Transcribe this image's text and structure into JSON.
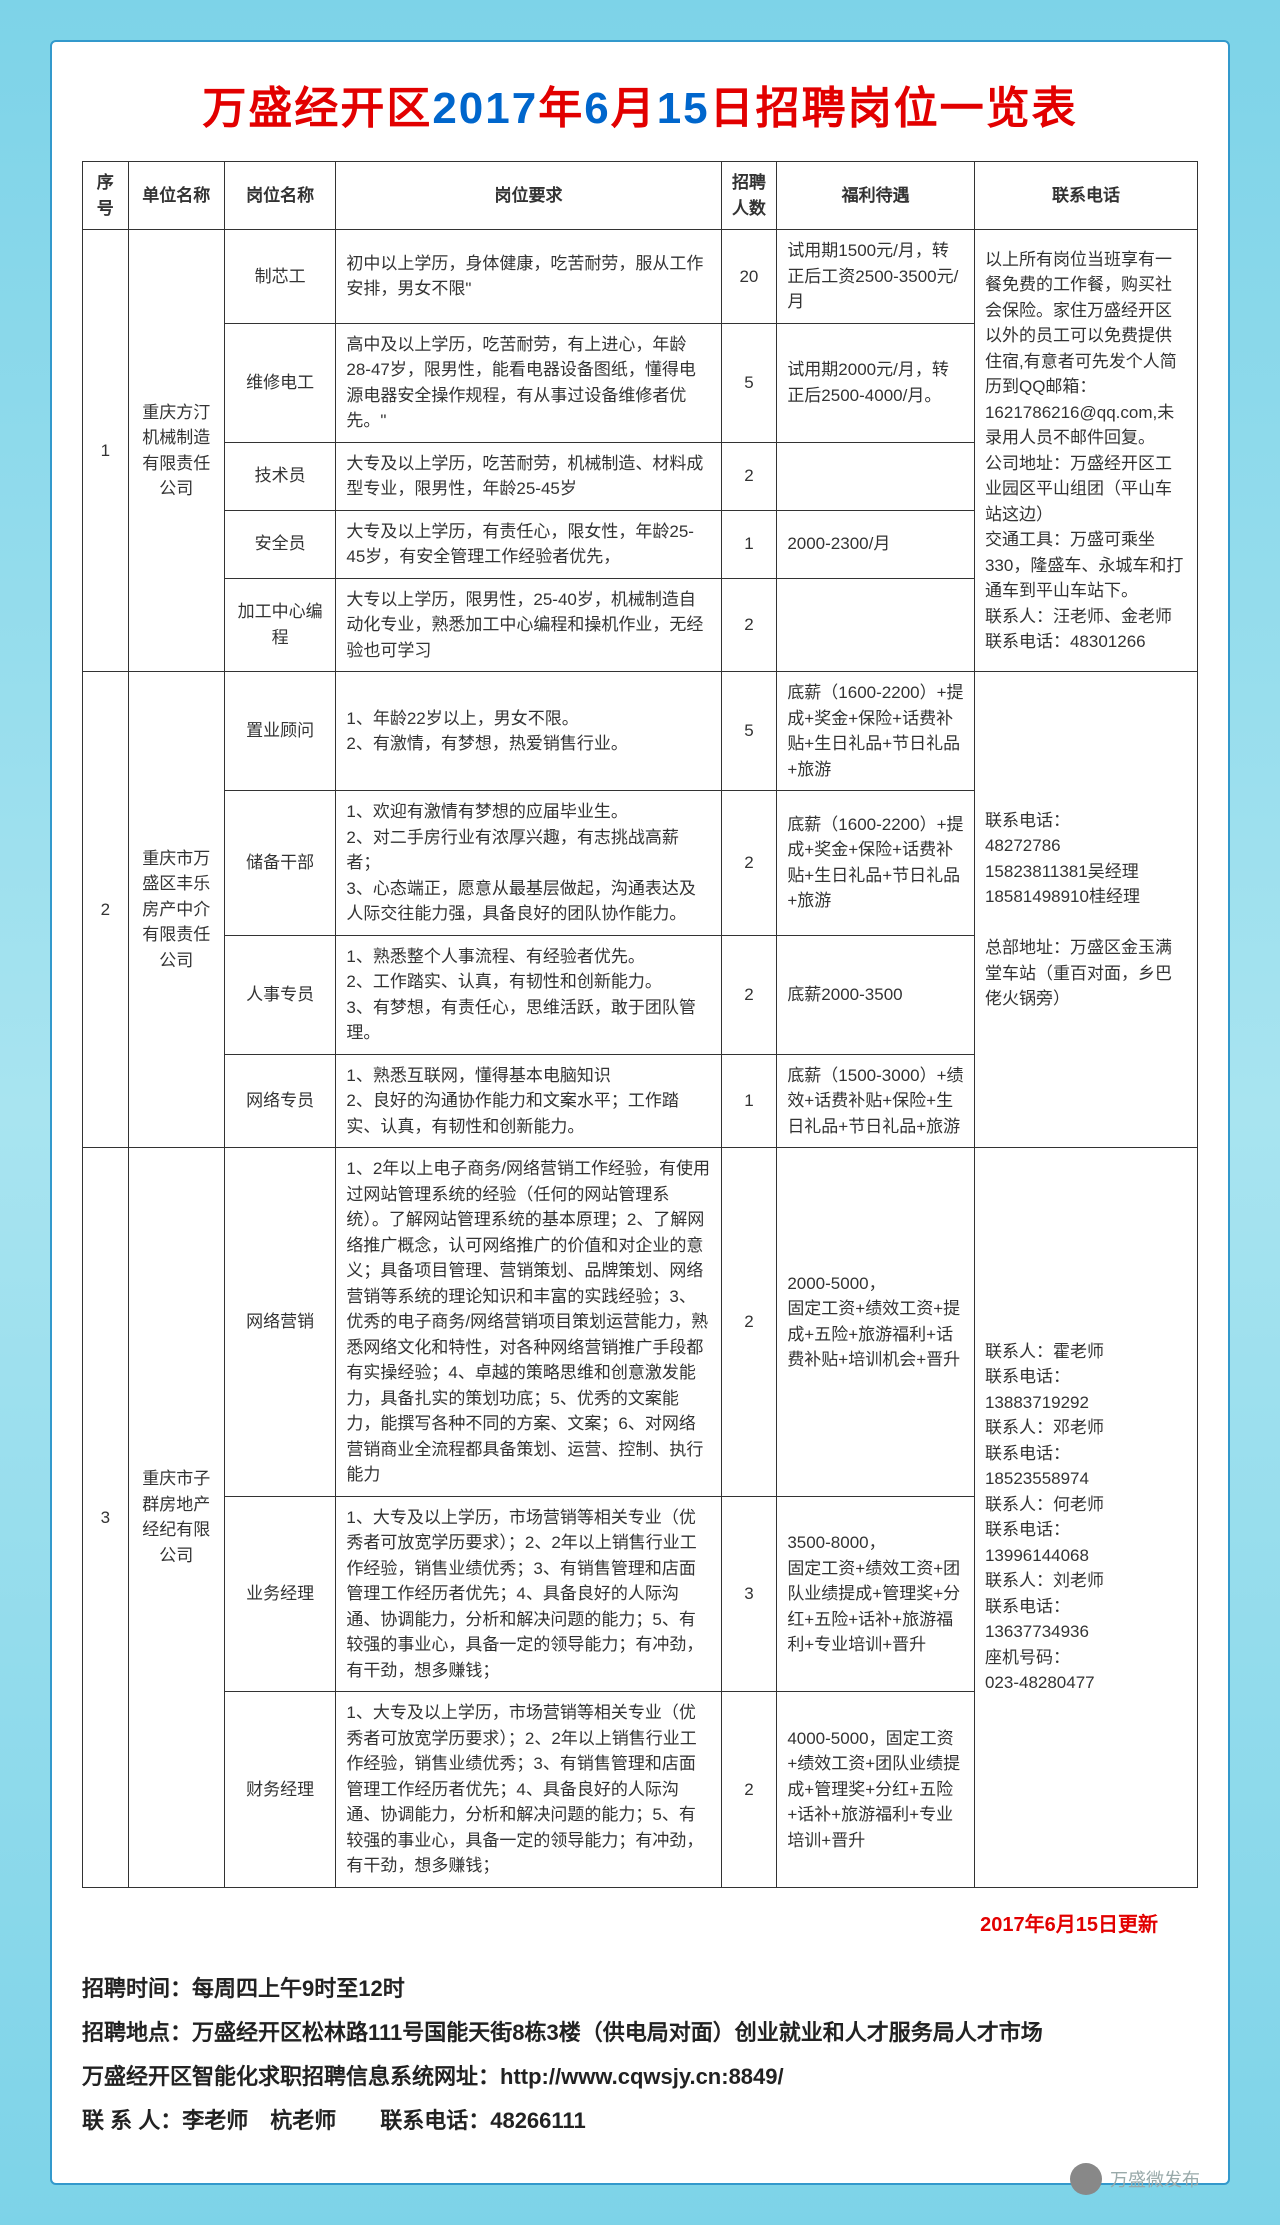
{
  "title_red": "万盛经开区",
  "title_blue1": "2017",
  "title_red2": "年",
  "title_blue2": "6",
  "title_red3": "月",
  "title_blue3": "15",
  "title_red4": "日招聘岗位一览表",
  "headers": {
    "idx": "序号",
    "company": "单位名称",
    "position": "岗位名称",
    "requirement": "岗位要求",
    "num": "招聘人数",
    "benefit": "福利待遇",
    "contact": "联系电话"
  },
  "group1": {
    "idx": "1",
    "company": "重庆方汀机械制造有限责任公司",
    "rows": [
      {
        "pos": "制芯工",
        "req": "初中以上学历，身体健康，吃苦耐劳，服从工作安排，男女不限\"",
        "num": "20",
        "ben": "试用期1500元/月，转正后工资2500-3500元/月"
      },
      {
        "pos": "维修电工",
        "req": "高中及以上学历，吃苦耐劳，有上进心，年龄28-47岁，限男性，能看电器设备图纸，懂得电源电器安全操作规程，有从事过设备维修者优先。\"",
        "num": "5",
        "ben": "试用期2000元/月，转正后2500-4000/月。"
      },
      {
        "pos": "技术员",
        "req": "大专及以上学历，吃苦耐劳，机械制造、材料成型专业，限男性，年龄25-45岁",
        "num": "2",
        "ben": ""
      },
      {
        "pos": "安全员",
        "req": "大专及以上学历，有责任心，限女性，年龄25-45岁，有安全管理工作经验者优先，",
        "num": "1",
        "ben": "2000-2300/月"
      },
      {
        "pos": "加工中心编程",
        "req": "大专以上学历，限男性，25-40岁，机械制造自动化专业，熟悉加工中心编程和操机作业，无经验也可学习",
        "num": "2",
        "ben": ""
      }
    ],
    "contact": "以上所有岗位当班享有一餐免费的工作餐，购买社会保险。家住万盛经开区以外的员工可以免费提供住宿,有意者可先发个人简历到QQ邮箱：1621786216@qq.com,未录用人员不邮件回复。\n公司地址：万盛经开区工业园区平山组团（平山车站这边）\n交通工具：万盛可乘坐330，隆盛车、永城车和打通车到平山车站下。\n联系人：汪老师、金老师　　联系电话：48301266"
  },
  "group2": {
    "idx": "2",
    "company": "重庆市万盛区丰乐房产中介有限责任公司",
    "rows": [
      {
        "pos": "置业顾问",
        "req": "1、年龄22岁以上，男女不限。\n2、有激情，有梦想，热爱销售行业。",
        "num": "5",
        "ben": "底薪（1600-2200）+提成+奖金+保险+话费补贴+生日礼品+节日礼品+旅游"
      },
      {
        "pos": "储备干部",
        "req": "1、欢迎有激情有梦想的应届毕业生。\n2、对二手房行业有浓厚兴趣，有志挑战高薪者；\n3、心态端正，愿意从最基层做起，沟通表达及人际交往能力强，具备良好的团队协作能力。",
        "num": "2",
        "ben": "底薪（1600-2200）+提成+奖金+保险+话费补贴+生日礼品+节日礼品+旅游"
      },
      {
        "pos": "人事专员",
        "req": "1、熟悉整个人事流程、有经验者优先。\n2、工作踏实、认真，有韧性和创新能力。\n3、有梦想，有责任心，思维活跃，敢于团队管理。",
        "num": "2",
        "ben": "底薪2000-3500"
      },
      {
        "pos": "网络专员",
        "req": "1、熟悉互联网，懂得基本电脑知识\n2、良好的沟通协作能力和文案水平；工作踏实、认真，有韧性和创新能力。",
        "num": "1",
        "ben": "底薪（1500-3000）+绩效+话费补贴+保险+生日礼品+节日礼品+旅游"
      }
    ],
    "contact": "联系电话：\n48272786\n15823811381吴经理\n18581498910桂经理\n\n总部地址：万盛区金玉满堂车站（重百对面，乡巴佬火锅旁）"
  },
  "group3": {
    "idx": "3",
    "company": "重庆市子群房地产经纪有限公司",
    "rows": [
      {
        "pos": "网络营销",
        "req": "1、2年以上电子商务/网络营销工作经验，有使用过网站管理系统的经验（任何的网站管理系统）。了解网站管理系统的基本原理；2、了解网络推广概念，认可网络推广的价值和对企业的意义；具备项目管理、营销策划、品牌策划、网络营销等系统的理论知识和丰富的实践经验；3、优秀的电子商务/网络营销项目策划运营能力，熟悉网络文化和特性，对各种网络营销推广手段都有实操经验；4、卓越的策略思维和创意激发能力，具备扎实的策划功底；5、优秀的文案能力，能撰写各种不同的方案、文案；6、对网络营销商业全流程都具备策划、运营、控制、执行能力",
        "num": "2",
        "ben": "2000-5000，\n固定工资+绩效工资+提成+五险+旅游福利+话费补贴+培训机会+晋升"
      },
      {
        "pos": "业务经理",
        "req": "1、大专及以上学历，市场营销等相关专业（优秀者可放宽学历要求）；2、2年以上销售行业工作经验，销售业绩优秀；3、有销售管理和店面管理工作经历者优先；4、具备良好的人际沟通、协调能力，分析和解决问题的能力；5、有较强的事业心，具备一定的领导能力；有冲劲，有干劲，想多赚钱；",
        "num": "3",
        "ben": "3500-8000，\n固定工资+绩效工资+团队业绩提成+管理奖+分红+五险+话补+旅游福利+专业培训+晋升"
      },
      {
        "pos": "财务经理",
        "req": "1、大专及以上学历，市场营销等相关专业（优秀者可放宽学历要求）；2、2年以上销售行业工作经验，销售业绩优秀；3、有销售管理和店面管理工作经历者优先；4、具备良好的人际沟通、协调能力，分析和解决问题的能力；5、有较强的事业心，具备一定的领导能力；有冲劲，有干劲，想多赚钱；",
        "num": "2",
        "ben": "4000-5000，固定工资+绩效工资+团队业绩提成+管理奖+分红+五险+话补+旅游福利+专业培训+晋升"
      }
    ],
    "contact": "联系人：霍老师\n联系电话：\n13883719292\n联系人：邓老师\n联系电话：\n18523558974\n联系人：何老师\n联系电话：\n13996144068\n联系人：刘老师\n联系电话：\n13637734936\n座机号码：\n023-48280477"
  },
  "update": "2017年6月15日更新",
  "footer": {
    "l1": "招聘时间：每周四上午9时至12时",
    "l2": "招聘地点：万盛经开区松林路111号国能天街8栋3楼（供电局对面）创业就业和人才服务局人才市场",
    "l3": "万盛经开区智能化求职招聘信息系统网址：http://www.cqwsjy.cn:8849/",
    "l4": "联 系 人：李老师　杭老师　　联系电话：48266111"
  },
  "wechat": "万盛微发布"
}
